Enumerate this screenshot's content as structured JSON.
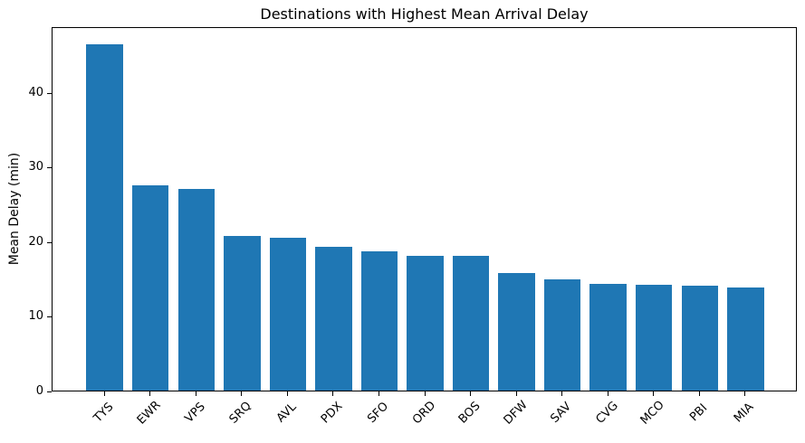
{
  "figure": {
    "background": "#ffffff",
    "text_color": "#000000"
  },
  "chart_data": {
    "type": "bar",
    "title": "Destinations with Highest Mean Arrival Delay",
    "xlabel": "",
    "ylabel": "Mean Delay (min)",
    "categories": [
      "TYS",
      "EWR",
      "VPS",
      "SRQ",
      "AVL",
      "PDX",
      "SFO",
      "ORD",
      "BOS",
      "DFW",
      "SAV",
      "CVG",
      "MCO",
      "PBI",
      "MIA"
    ],
    "values": [
      46.4,
      27.5,
      27.0,
      20.7,
      20.5,
      19.3,
      18.6,
      18.0,
      18.0,
      15.8,
      14.9,
      14.3,
      14.2,
      14.0,
      13.8
    ],
    "bar_color": "#1f77b4",
    "bar_width": 0.8,
    "ylim": [
      0,
      48.8
    ],
    "xlim": [
      -1.14,
      15.14
    ],
    "yticks": [
      0,
      10,
      20,
      30,
      40
    ],
    "grid": false,
    "legend": null,
    "x_tick_rotation_deg": 45
  }
}
